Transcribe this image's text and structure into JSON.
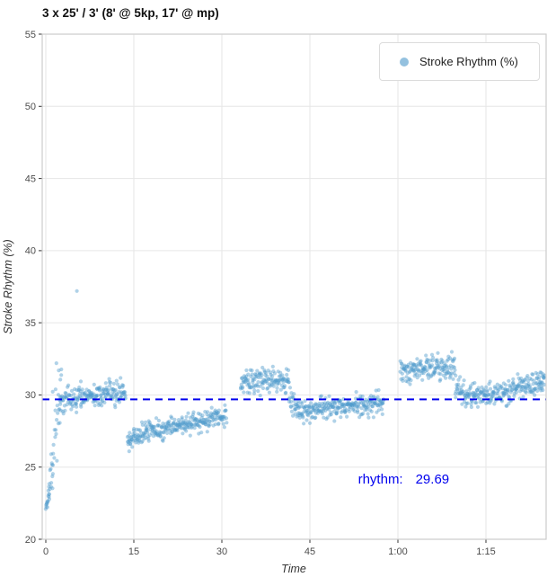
{
  "chart_data": {
    "type": "scatter",
    "title": "3 x 25' / 3' (8' @ 5kp, 17' @ mp)",
    "xlabel": "Time",
    "ylabel": "Stroke Rhythm (%)",
    "legend_label": "Stroke Rhythm (%)",
    "xlim": [
      -0.6,
      85.3
    ],
    "ylim": [
      20,
      55
    ],
    "grid": true,
    "legend_position": "top-right-inside",
    "yticks": [
      20,
      25,
      30,
      35,
      40,
      45,
      50,
      55
    ],
    "xticks": [
      {
        "v": 0,
        "label": "0"
      },
      {
        "v": 15,
        "label": "15"
      },
      {
        "v": 30,
        "label": "30"
      },
      {
        "v": 45,
        "label": "45"
      },
      {
        "v": 60,
        "label": "1:00"
      },
      {
        "v": 75,
        "label": "1:15"
      }
    ],
    "point_color": "#4f9bcb",
    "point_opacity": 0.45,
    "point_radius": 2.1,
    "hline": {
      "y": 29.69,
      "color": "#0000ee",
      "style": "dashed"
    },
    "annotation": {
      "label": "rhythm:",
      "value": "29.69",
      "x": 53.2,
      "value_x": 63.0,
      "y": 23.85,
      "color": "#0000ee"
    },
    "segments": [
      {
        "t0": 0.0,
        "t1": 0.6,
        "v0": 22.3,
        "v1": 23.0,
        "sd": 0.4,
        "n": 14
      },
      {
        "t0": 0.5,
        "t1": 1.2,
        "v0": 23.3,
        "v1": 25.3,
        "sd": 0.55,
        "n": 12
      },
      {
        "t0": 1.1,
        "t1": 2.7,
        "v0": 26.5,
        "v1": 29.5,
        "sd": 1.5,
        "n": 26
      },
      {
        "t0": 2.4,
        "t1": 5.2,
        "v0": 29.6,
        "v1": 29.8,
        "sd": 0.45,
        "n": 45
      },
      {
        "t0": 5.2,
        "t1": 13.6,
        "v0": 29.9,
        "v1": 30.2,
        "sd": 0.42,
        "n": 150
      },
      {
        "t0": 13.9,
        "t1": 17.0,
        "v0": 26.8,
        "v1": 27.4,
        "sd": 0.35,
        "n": 55
      },
      {
        "t0": 17.0,
        "t1": 24.0,
        "v0": 27.4,
        "v1": 28.0,
        "sd": 0.35,
        "n": 120
      },
      {
        "t0": 24.0,
        "t1": 30.8,
        "v0": 28.0,
        "v1": 28.6,
        "sd": 0.36,
        "n": 115
      },
      {
        "t0": 33.2,
        "t1": 41.4,
        "v0": 30.8,
        "v1": 31.1,
        "sd": 0.4,
        "n": 140
      },
      {
        "t0": 41.4,
        "t1": 43.0,
        "v0": 29.8,
        "v1": 29.1,
        "sd": 0.45,
        "n": 28
      },
      {
        "t0": 43.0,
        "t1": 50.0,
        "v0": 28.9,
        "v1": 29.1,
        "sd": 0.38,
        "n": 120
      },
      {
        "t0": 50.0,
        "t1": 57.6,
        "v0": 29.2,
        "v1": 29.4,
        "sd": 0.4,
        "n": 128
      },
      {
        "t0": 60.4,
        "t1": 69.8,
        "v0": 31.7,
        "v1": 32.0,
        "sd": 0.42,
        "n": 160
      },
      {
        "t0": 69.8,
        "t1": 71.5,
        "v0": 30.7,
        "v1": 30.2,
        "sd": 0.42,
        "n": 28
      },
      {
        "t0": 71.5,
        "t1": 78.0,
        "v0": 30.0,
        "v1": 30.1,
        "sd": 0.36,
        "n": 110
      },
      {
        "t0": 78.0,
        "t1": 84.2,
        "v0": 30.2,
        "v1": 30.8,
        "sd": 0.42,
        "n": 105
      },
      {
        "t0": 84.2,
        "t1": 85.0,
        "v0": 30.9,
        "v1": 31.2,
        "sd": 0.4,
        "n": 18
      }
    ],
    "outliers": [
      [
        5.3,
        37.2
      ],
      [
        1.8,
        32.2
      ],
      [
        2.2,
        31.7
      ],
      [
        0.9,
        25.9
      ],
      [
        14.2,
        26.1
      ]
    ]
  }
}
